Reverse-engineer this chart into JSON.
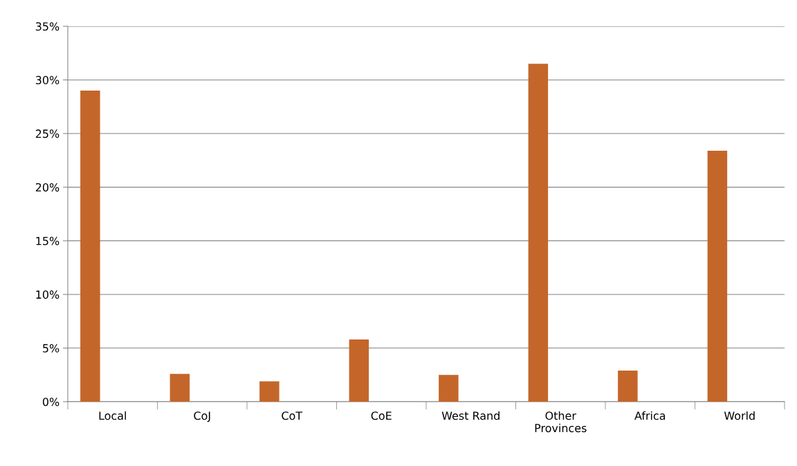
{
  "chart_data": {
    "type": "bar",
    "categories": [
      "Local",
      "CoJ",
      "CoT",
      "CoE",
      "West Rand",
      "Other\nProvinces",
      "Africa",
      "World"
    ],
    "values": [
      29.0,
      2.6,
      1.9,
      5.8,
      2.5,
      31.5,
      2.9,
      23.4
    ],
    "color": "#c4662a",
    "ylim": [
      0,
      35
    ],
    "yticks": [
      {
        "value": 0,
        "label": "0%"
      },
      {
        "value": 5,
        "label": "5%"
      },
      {
        "value": 10,
        "label": "10%"
      },
      {
        "value": 15,
        "label": "15%"
      },
      {
        "value": 20,
        "label": "20%"
      },
      {
        "value": 25,
        "label": "25%"
      },
      {
        "value": 30,
        "label": "30%"
      },
      {
        "value": 35,
        "label": "35%"
      }
    ],
    "grid": "y"
  }
}
